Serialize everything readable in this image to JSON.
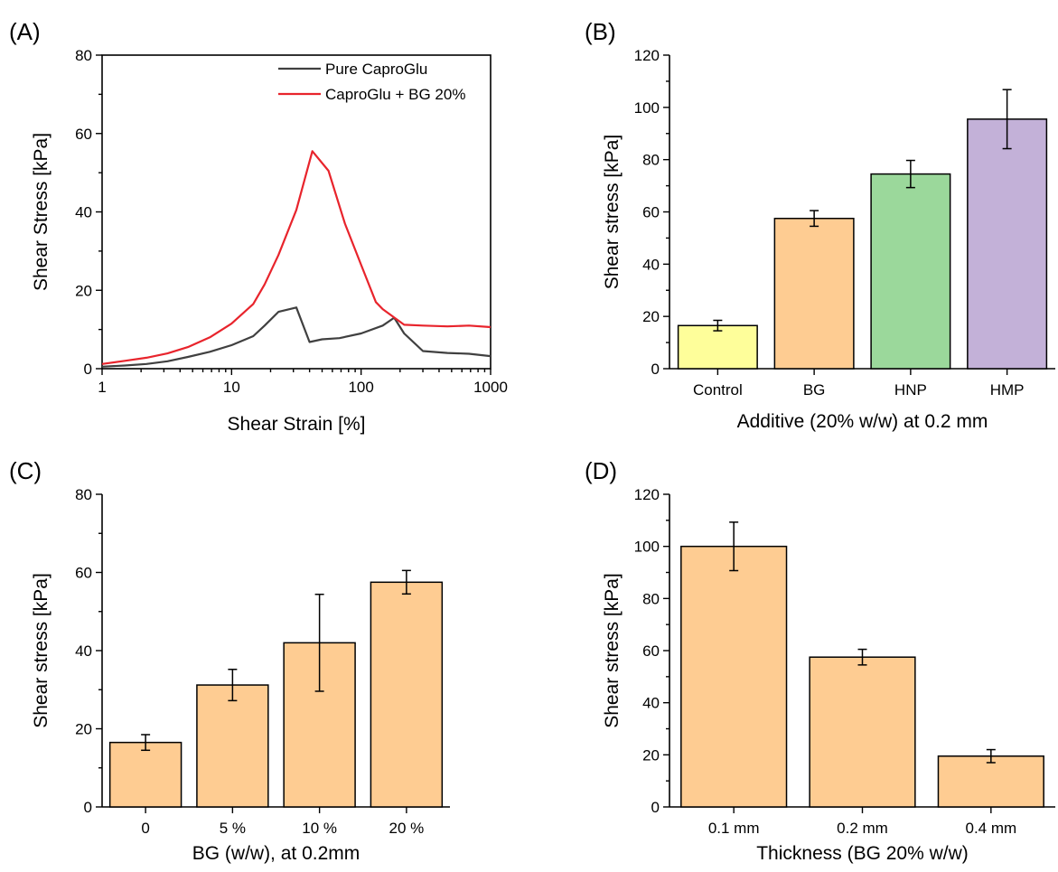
{
  "chart_data": [
    {
      "panel": "(A)",
      "type": "line",
      "xlabel": "Shear Strain [%]",
      "ylabel": "Shear Stress [kPa]",
      "xscale": "log",
      "xlim": [
        1,
        1000
      ],
      "ylim": [
        0,
        80
      ],
      "xticks": [
        1,
        10,
        100,
        1000
      ],
      "xtick_labels": [
        "1",
        "10",
        "100",
        "1000"
      ],
      "yticks": [
        0,
        20,
        40,
        60,
        80
      ],
      "ytick_labels": [
        "0",
        "20",
        "40",
        "60",
        "80"
      ],
      "legend_position": "top-right",
      "series": [
        {
          "name": "Pure CaproGlu",
          "color": "#404040",
          "x": [
            1,
            1.5,
            2.2,
            3.2,
            4.6,
            6.8,
            10,
            14.7,
            18,
            23,
            31.6,
            40,
            50,
            68,
            100,
            147,
            180,
            215,
            300,
            464,
            681,
            1000
          ],
          "y": [
            0.5,
            0.8,
            1.2,
            1.9,
            3.0,
            4.3,
            6.0,
            8.3,
            11.0,
            14.5,
            15.6,
            6.8,
            7.5,
            7.8,
            9.0,
            11.0,
            13.0,
            9.0,
            4.5,
            4.0,
            3.8,
            3.2
          ]
        },
        {
          "name": "CaproGlu + BG 20%",
          "color": "#e8242c",
          "x": [
            1,
            1.5,
            2.2,
            3.2,
            4.6,
            6.8,
            10,
            14.7,
            18,
            23,
            31.6,
            42,
            56,
            75,
            100,
            130,
            147,
            215,
            300,
            464,
            681,
            1000
          ],
          "y": [
            1.2,
            2.0,
            2.8,
            3.9,
            5.5,
            8.0,
            11.5,
            16.5,
            21.5,
            29.0,
            40.5,
            55.5,
            50.5,
            37.0,
            26.5,
            17.0,
            15.2,
            11.2,
            11.0,
            10.8,
            11.0,
            10.6
          ]
        }
      ]
    },
    {
      "panel": "(B)",
      "type": "bar",
      "xlabel": "Additive (20% w/w) at 0.2 mm",
      "ylabel": "Shear stress [kPa]",
      "ylim": [
        0,
        120
      ],
      "yticks": [
        0,
        20,
        40,
        60,
        80,
        100,
        120
      ],
      "ytick_labels": [
        "0",
        "20",
        "40",
        "60",
        "80",
        "100",
        "120"
      ],
      "categories": [
        "Control",
        "BG",
        "HNP",
        "HMP"
      ],
      "values": [
        16.5,
        57.5,
        74.5,
        95.5
      ],
      "errors": [
        2.0,
        3.0,
        5.2,
        11.3
      ],
      "colors": [
        "#fefe9a",
        "#fecc92",
        "#9bd89b",
        "#c3b1d8"
      ]
    },
    {
      "panel": "(C)",
      "type": "bar",
      "xlabel": "BG (w/w), at 0.2mm",
      "ylabel": "Shear stress [kPa]",
      "ylim": [
        0,
        80
      ],
      "yticks": [
        0,
        20,
        40,
        60,
        80
      ],
      "ytick_labels": [
        "0",
        "20",
        "40",
        "60",
        "80"
      ],
      "categories": [
        "0",
        "5 %",
        "10 %",
        "20 %"
      ],
      "values": [
        16.5,
        31.2,
        42.0,
        57.5
      ],
      "errors": [
        2.0,
        4.0,
        12.4,
        3.0
      ],
      "colors": [
        "#fecc92",
        "#fecc92",
        "#fecc92",
        "#fecc92"
      ]
    },
    {
      "panel": "(D)",
      "type": "bar",
      "xlabel": "Thickness (BG 20% w/w)",
      "ylabel": "Shear stress [kPa]",
      "ylim": [
        0,
        120
      ],
      "yticks": [
        0,
        20,
        40,
        60,
        80,
        100,
        120
      ],
      "ytick_labels": [
        "0",
        "20",
        "40",
        "60",
        "80",
        "100",
        "120"
      ],
      "categories": [
        "0.1 mm",
        "0.2 mm",
        "0.4 mm"
      ],
      "values": [
        100.0,
        57.5,
        19.5
      ],
      "errors": [
        9.3,
        3.0,
        2.5
      ],
      "colors": [
        "#fecc92",
        "#fecc92",
        "#fecc92"
      ]
    }
  ]
}
